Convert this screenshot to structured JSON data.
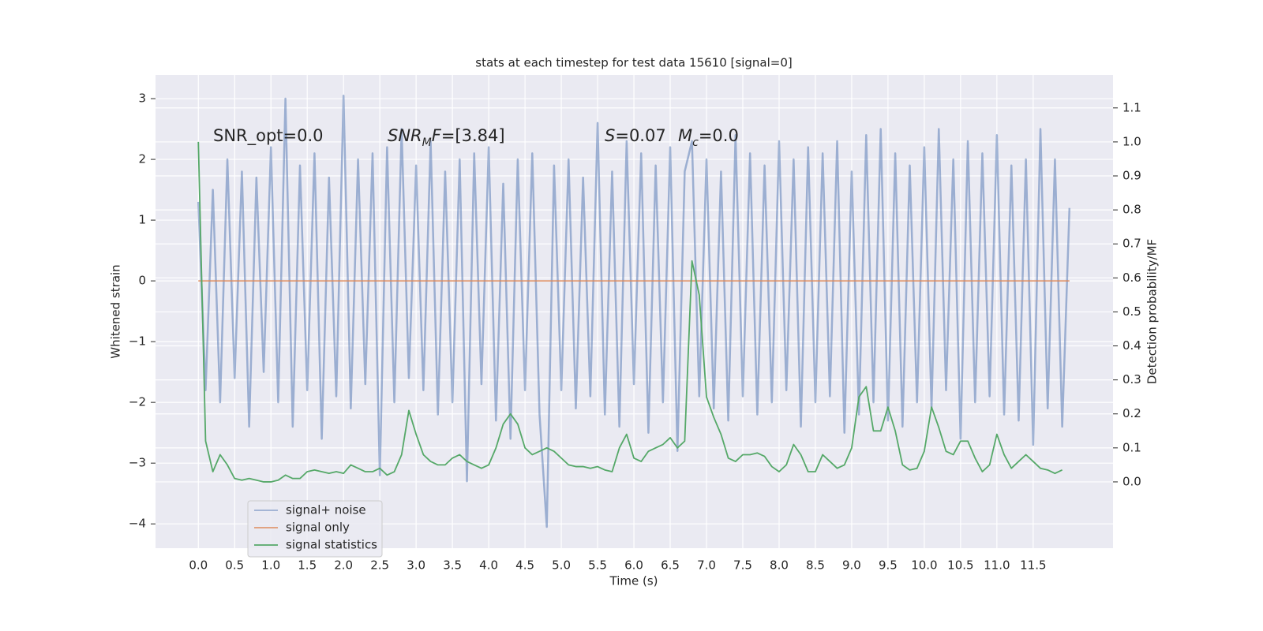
{
  "chart_data": {
    "type": "line",
    "title": "stats at each timestep for test data 15610 [signal=0]",
    "xlabel": "Time (s)",
    "ylabel": "Whitened strain",
    "y2label": "Detection probability/MF",
    "xlim": [
      -0.59,
      12.6
    ],
    "ylim": [
      -4.4,
      3.39
    ],
    "y2lim": [
      -0.195,
      1.197
    ],
    "grid": true,
    "legend": "lower left",
    "xticks": [
      {
        "value": 0,
        "label": "0.0"
      },
      {
        "value": 0.5,
        "label": "0.5"
      },
      {
        "value": 1,
        "label": "1.0"
      },
      {
        "value": 1.5,
        "label": "1.5"
      },
      {
        "value": 2,
        "label": "2.0"
      },
      {
        "value": 2.5,
        "label": "2.5"
      },
      {
        "value": 3,
        "label": "3.0"
      },
      {
        "value": 3.5,
        "label": "3.5"
      },
      {
        "value": 4,
        "label": "4.0"
      },
      {
        "value": 4.5,
        "label": "4.5"
      },
      {
        "value": 5,
        "label": "5.0"
      },
      {
        "value": 5.5,
        "label": "5.5"
      },
      {
        "value": 6,
        "label": "6.0"
      },
      {
        "value": 6.5,
        "label": "6.5"
      },
      {
        "value": 7,
        "label": "7.0"
      },
      {
        "value": 7.5,
        "label": "7.5"
      },
      {
        "value": 8,
        "label": "8.0"
      },
      {
        "value": 8.5,
        "label": "8.5"
      },
      {
        "value": 9,
        "label": "9.0"
      },
      {
        "value": 9.5,
        "label": "9.5"
      },
      {
        "value": 10,
        "label": "10.0"
      },
      {
        "value": 10.5,
        "label": "10.5"
      },
      {
        "value": 11,
        "label": "11.0"
      },
      {
        "value": 11.5,
        "label": "11.5"
      }
    ],
    "yticks": [
      {
        "value": -4,
        "label": "−4"
      },
      {
        "value": -3,
        "label": "−3"
      },
      {
        "value": -2,
        "label": "−2"
      },
      {
        "value": -1,
        "label": "−1"
      },
      0,
      1,
      2,
      3
    ],
    "y2ticks": [
      {
        "value": 0,
        "label": "0.0"
      },
      {
        "value": 0.1,
        "label": "0.1"
      },
      {
        "value": 0.2,
        "label": "0.2"
      },
      {
        "value": 0.3,
        "label": "0.3"
      },
      {
        "value": 0.4,
        "label": "0.4"
      },
      {
        "value": 0.5,
        "label": "0.5"
      },
      {
        "value": 0.6,
        "label": "0.6"
      },
      {
        "value": 0.7,
        "label": "0.7"
      },
      {
        "value": 0.8,
        "label": "0.8"
      },
      {
        "value": 0.9,
        "label": "0.9"
      },
      {
        "value": 1,
        "label": "1.0"
      },
      {
        "value": 1.1,
        "label": "1.1"
      }
    ],
    "annotations": [
      {
        "parts": [
          [
            "SNR_opt=0.0",
            "normal"
          ]
        ]
      },
      {
        "parts": [
          [
            "SNR",
            "italic"
          ],
          [
            "M",
            "sub"
          ],
          [
            "F",
            "italic"
          ],
          [
            "=[3.84]",
            "normal"
          ]
        ]
      },
      {
        "parts": [
          [
            "S",
            "italic"
          ],
          [
            "=0.07",
            "normal"
          ]
        ]
      },
      {
        "parts": [
          [
            "M",
            "italic"
          ],
          [
            "c",
            "sub"
          ],
          [
            "=0.0",
            "normal"
          ]
        ]
      }
    ],
    "series": [
      {
        "name": "signal+ noise",
        "color": "#4c72b0",
        "opacity": 0.5,
        "axis": "y",
        "x": [
          0,
          0.1,
          0.2,
          0.3,
          0.4,
          0.5,
          0.6,
          0.7,
          0.8,
          0.9,
          1,
          1.1,
          1.2,
          1.3,
          1.4,
          1.5,
          1.6,
          1.7,
          1.8,
          1.9,
          2,
          2.1,
          2.2,
          2.3,
          2.4,
          2.5,
          2.6,
          2.7,
          2.8,
          2.9,
          3,
          3.1,
          3.2,
          3.3,
          3.4,
          3.5,
          3.6,
          3.7,
          3.8,
          3.9,
          4,
          4.1,
          4.2,
          4.3,
          4.4,
          4.5,
          4.6,
          4.7,
          4.8,
          4.9,
          5,
          5.1,
          5.2,
          5.3,
          5.4,
          5.5,
          5.6,
          5.7,
          5.8,
          5.9,
          6,
          6.1,
          6.2,
          6.3,
          6.4,
          6.5,
          6.6,
          6.7,
          6.8,
          6.9,
          7,
          7.1,
          7.2,
          7.3,
          7.4,
          7.5,
          7.6,
          7.7,
          7.8,
          7.9,
          8,
          8.1,
          8.2,
          8.3,
          8.4,
          8.5,
          8.6,
          8.7,
          8.8,
          8.9,
          9,
          9.1,
          9.2,
          9.3,
          9.4,
          9.5,
          9.6,
          9.7,
          9.8,
          9.9,
          10,
          10.1,
          10.2,
          10.3,
          10.4,
          10.5,
          10.6,
          10.7,
          10.8,
          10.9,
          11,
          11.1,
          11.2,
          11.3,
          11.4,
          11.5,
          11.6,
          11.7,
          11.8,
          11.9,
          12
        ],
        "values": [
          1.3,
          -1.8,
          1.5,
          -2.0,
          2.0,
          -1.6,
          1.8,
          -2.4,
          1.7,
          -1.5,
          2.2,
          -2.0,
          3.0,
          -2.4,
          1.9,
          -1.8,
          2.1,
          -2.6,
          1.7,
          -1.9,
          3.05,
          -2.1,
          2.0,
          -1.7,
          2.1,
          -3.2,
          2.2,
          -2.0,
          2.5,
          -1.6,
          1.9,
          -1.8,
          2.3,
          -2.2,
          1.8,
          -2.0,
          2.0,
          -3.3,
          2.1,
          -1.7,
          2.2,
          -2.3,
          1.6,
          -2.6,
          2.0,
          -1.8,
          2.1,
          -2.2,
          -4.05,
          1.9,
          -1.8,
          2.0,
          -2.1,
          1.7,
          -1.9,
          2.6,
          -2.2,
          1.8,
          -2.4,
          2.3,
          -1.7,
          2.1,
          -2.5,
          1.9,
          -2.0,
          2.2,
          -2.8,
          1.8,
          2.3,
          -1.9,
          2.0,
          -2.1,
          1.8,
          -2.3,
          2.4,
          -1.9,
          2.1,
          -2.2,
          1.9,
          -2.0,
          2.3,
          -1.8,
          2.0,
          -2.4,
          2.2,
          -2.0,
          2.1,
          -1.9,
          2.3,
          -2.5,
          1.8,
          -2.2,
          2.4,
          -2.0,
          2.5,
          -2.3,
          2.1,
          -2.4,
          1.9,
          -2.0,
          2.2,
          -2.1,
          2.5,
          -1.8,
          2.0,
          -2.6,
          2.3,
          -2.0,
          2.1,
          -1.9,
          2.4,
          -2.2,
          1.9,
          -2.3,
          2.0,
          -2.7,
          2.5,
          -2.1,
          2.0,
          -2.4,
          1.2
        ]
      },
      {
        "name": "signal only",
        "color": "#dd8452",
        "opacity": 0.8,
        "axis": "y",
        "x": [
          0,
          12
        ],
        "values": [
          0,
          0
        ]
      },
      {
        "name": "signal statistics",
        "color": "#55a868",
        "opacity": 1,
        "axis": "y2",
        "x": [
          0,
          0.1,
          0.2,
          0.3,
          0.4,
          0.5,
          0.6,
          0.7,
          0.8,
          0.9,
          1,
          1.1,
          1.2,
          1.3,
          1.4,
          1.5,
          1.6,
          1.7,
          1.8,
          1.9,
          2,
          2.1,
          2.2,
          2.3,
          2.4,
          2.5,
          2.6,
          2.7,
          2.8,
          2.9,
          3,
          3.1,
          3.2,
          3.3,
          3.4,
          3.5,
          3.6,
          3.7,
          3.8,
          3.9,
          4,
          4.1,
          4.2,
          4.3,
          4.4,
          4.5,
          4.6,
          4.7,
          4.8,
          4.9,
          5,
          5.1,
          5.2,
          5.3,
          5.4,
          5.5,
          5.6,
          5.7,
          5.8,
          5.9,
          6,
          6.1,
          6.2,
          6.3,
          6.4,
          6.5,
          6.6,
          6.7,
          6.8,
          6.9,
          7,
          7.1,
          7.2,
          7.3,
          7.4,
          7.5,
          7.6,
          7.7,
          7.8,
          7.9,
          8,
          8.1,
          8.2,
          8.3,
          8.4,
          8.5,
          8.6,
          8.7,
          8.8,
          8.9,
          9,
          9.1,
          9.2,
          9.3,
          9.4,
          9.5,
          9.6,
          9.7,
          9.8,
          9.9,
          10,
          10.1,
          10.2,
          10.3,
          10.4,
          10.5,
          10.6,
          10.7,
          10.8,
          10.9,
          11,
          11.1,
          11.2,
          11.3,
          11.4,
          11.5,
          11.6,
          11.7,
          11.8,
          11.9
        ],
        "values": [
          1.0,
          0.12,
          0.03,
          0.08,
          0.05,
          0.01,
          0.005,
          0.01,
          0.005,
          0.0,
          0.0,
          0.005,
          0.02,
          0.01,
          0.01,
          0.03,
          0.035,
          0.03,
          0.025,
          0.03,
          0.025,
          0.05,
          0.04,
          0.03,
          0.03,
          0.04,
          0.02,
          0.03,
          0.08,
          0.21,
          0.14,
          0.08,
          0.06,
          0.05,
          0.05,
          0.07,
          0.08,
          0.06,
          0.05,
          0.04,
          0.05,
          0.1,
          0.17,
          0.2,
          0.17,
          0.1,
          0.08,
          0.09,
          0.1,
          0.09,
          0.07,
          0.05,
          0.045,
          0.045,
          0.04,
          0.045,
          0.035,
          0.03,
          0.1,
          0.14,
          0.07,
          0.06,
          0.09,
          0.1,
          0.11,
          0.13,
          0.1,
          0.12,
          0.65,
          0.55,
          0.25,
          0.19,
          0.14,
          0.07,
          0.06,
          0.08,
          0.08,
          0.085,
          0.075,
          0.045,
          0.03,
          0.05,
          0.11,
          0.08,
          0.03,
          0.03,
          0.08,
          0.06,
          0.04,
          0.05,
          0.1,
          0.25,
          0.28,
          0.15,
          0.15,
          0.22,
          0.15,
          0.05,
          0.035,
          0.04,
          0.09,
          0.22,
          0.16,
          0.09,
          0.08,
          0.12,
          0.12,
          0.07,
          0.03,
          0.05,
          0.14,
          0.08,
          0.04,
          0.06,
          0.08,
          0.06,
          0.04,
          0.035,
          0.025,
          0.035
        ]
      }
    ]
  }
}
